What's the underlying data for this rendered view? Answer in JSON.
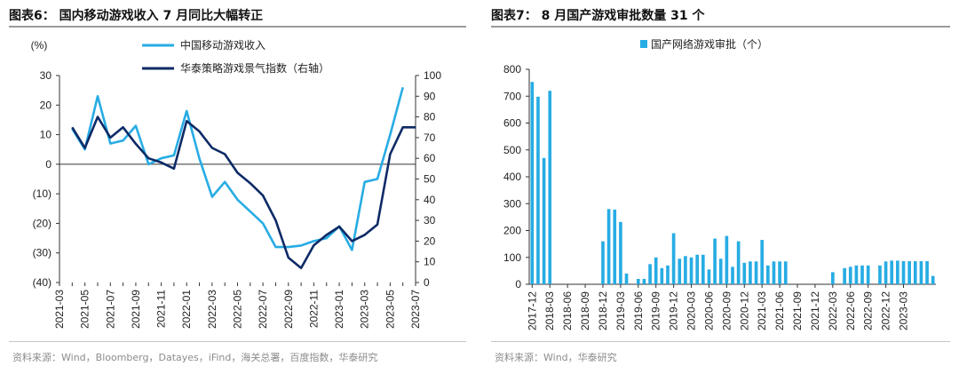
{
  "left": {
    "title": "图表6：  国内移动游戏收入 7 月同比大幅转正",
    "source": "资料来源：Wind，Bloomberg，Datayes，iFind，海关总署，百度指数，华泰研究"
  },
  "right": {
    "title": "图表7：  8 月国产游戏审批数量 31 个",
    "source": "资料来源：Wind，华泰研究"
  },
  "chart_data": [
    {
      "type": "line",
      "title": "",
      "ylabel": "(%)",
      "ylim": [
        -40,
        30
      ],
      "ylim_right": [
        0,
        100
      ],
      "yticks_left": [
        "30",
        "20",
        "10",
        "0",
        "(10)",
        "(20)",
        "(30)",
        "(40)"
      ],
      "yticks_right": [
        "100",
        "90",
        "80",
        "70",
        "60",
        "50",
        "40",
        "30",
        "20",
        "10",
        "0"
      ],
      "x": [
        "2021-03",
        "2021-04",
        "2021-05",
        "2021-06",
        "2021-07",
        "2021-08",
        "2021-09",
        "2021-10",
        "2021-11",
        "2021-12",
        "2022-01",
        "2022-02",
        "2022-03",
        "2022-04",
        "2022-05",
        "2022-06",
        "2022-07",
        "2022-08",
        "2022-09",
        "2022-10",
        "2022-11",
        "2022-12",
        "2023-01",
        "2023-02",
        "2023-03",
        "2023-04",
        "2023-05",
        "2023-06",
        "2023-07"
      ],
      "xticks": [
        "2021-03",
        "2021-05",
        "2021-07",
        "2021-09",
        "2021-11",
        "2022-01",
        "2022-03",
        "2022-05",
        "2022-07",
        "2022-09",
        "2022-11",
        "2023-01",
        "2023-03",
        "2023-05",
        "2023-07"
      ],
      "series": [
        {
          "name": "中国移动游戏收入",
          "axis": "left",
          "color": "#27ace4",
          "values": [
            null,
            12,
            5,
            23,
            7,
            8,
            13,
            0,
            2,
            3,
            18,
            2,
            -11,
            -6,
            -12,
            -16,
            -20,
            -28,
            -28,
            -27.5,
            -26,
            -25,
            -21,
            -29,
            -6,
            -5,
            10,
            26,
            null
          ]
        },
        {
          "name": "华泰策略游戏景气指数（右轴）",
          "axis": "right",
          "color": "#0d2a66",
          "values": [
            null,
            75,
            65,
            80,
            70,
            75,
            67,
            60,
            58,
            55,
            78,
            73,
            65,
            62,
            53,
            48,
            42,
            30,
            12,
            7,
            18,
            23,
            27,
            20,
            23,
            28,
            62,
            75,
            75
          ]
        }
      ]
    },
    {
      "type": "bar",
      "title": "",
      "legend": "国产网络游戏审批（个）",
      "color": "#27ace4",
      "ylim": [
        0,
        800
      ],
      "yticks": [
        "800",
        "700",
        "600",
        "500",
        "400",
        "300",
        "200",
        "100",
        "0"
      ],
      "xticks": [
        "2017-12",
        "2018-03",
        "2018-06",
        "2018-09",
        "2018-12",
        "2019-03",
        "2019-06",
        "2019-09",
        "2019-12",
        "2020-03",
        "2020-06",
        "2020-09",
        "2020-12",
        "2021-03",
        "2021-06",
        "2021-09",
        "2021-12",
        "2022-03",
        "2022-06",
        "2022-09",
        "2022-12",
        "2023-03"
      ],
      "categories": [
        "2017-12",
        "2018-01",
        "2018-02",
        "2018-03",
        "2018-04",
        "2018-05",
        "2018-06",
        "2018-07",
        "2018-08",
        "2018-09",
        "2018-10",
        "2018-11",
        "2018-12",
        "2019-01",
        "2019-02",
        "2019-03",
        "2019-04",
        "2019-05",
        "2019-06",
        "2019-07",
        "2019-08",
        "2019-09",
        "2019-10",
        "2019-11",
        "2019-12",
        "2020-01",
        "2020-02",
        "2020-03",
        "2020-04",
        "2020-05",
        "2020-06",
        "2020-07",
        "2020-08",
        "2020-09",
        "2020-10",
        "2020-11",
        "2020-12",
        "2021-01",
        "2021-02",
        "2021-03",
        "2021-04",
        "2021-05",
        "2021-06",
        "2021-07",
        "2021-08",
        "2021-09",
        "2021-10",
        "2021-11",
        "2021-12",
        "2022-01",
        "2022-02",
        "2022-03",
        "2022-04",
        "2022-05",
        "2022-06",
        "2022-07",
        "2022-08",
        "2022-09",
        "2022-10",
        "2022-11",
        "2022-12",
        "2023-01",
        "2023-02",
        "2023-03",
        "2023-04",
        "2023-05",
        "2023-06",
        "2023-07",
        "2023-08"
      ],
      "values": [
        753,
        698,
        470,
        720,
        0,
        0,
        0,
        0,
        0,
        0,
        0,
        0,
        160,
        280,
        278,
        232,
        40,
        0,
        20,
        20,
        75,
        100,
        60,
        70,
        190,
        95,
        105,
        100,
        110,
        110,
        55,
        170,
        95,
        180,
        65,
        160,
        80,
        85,
        85,
        165,
        70,
        85,
        85,
        85,
        0,
        0,
        0,
        0,
        0,
        0,
        0,
        45,
        0,
        60,
        65,
        70,
        70,
        70,
        0,
        70,
        85,
        88,
        88,
        86,
        86,
        86,
        86,
        86,
        31
      ]
    }
  ]
}
